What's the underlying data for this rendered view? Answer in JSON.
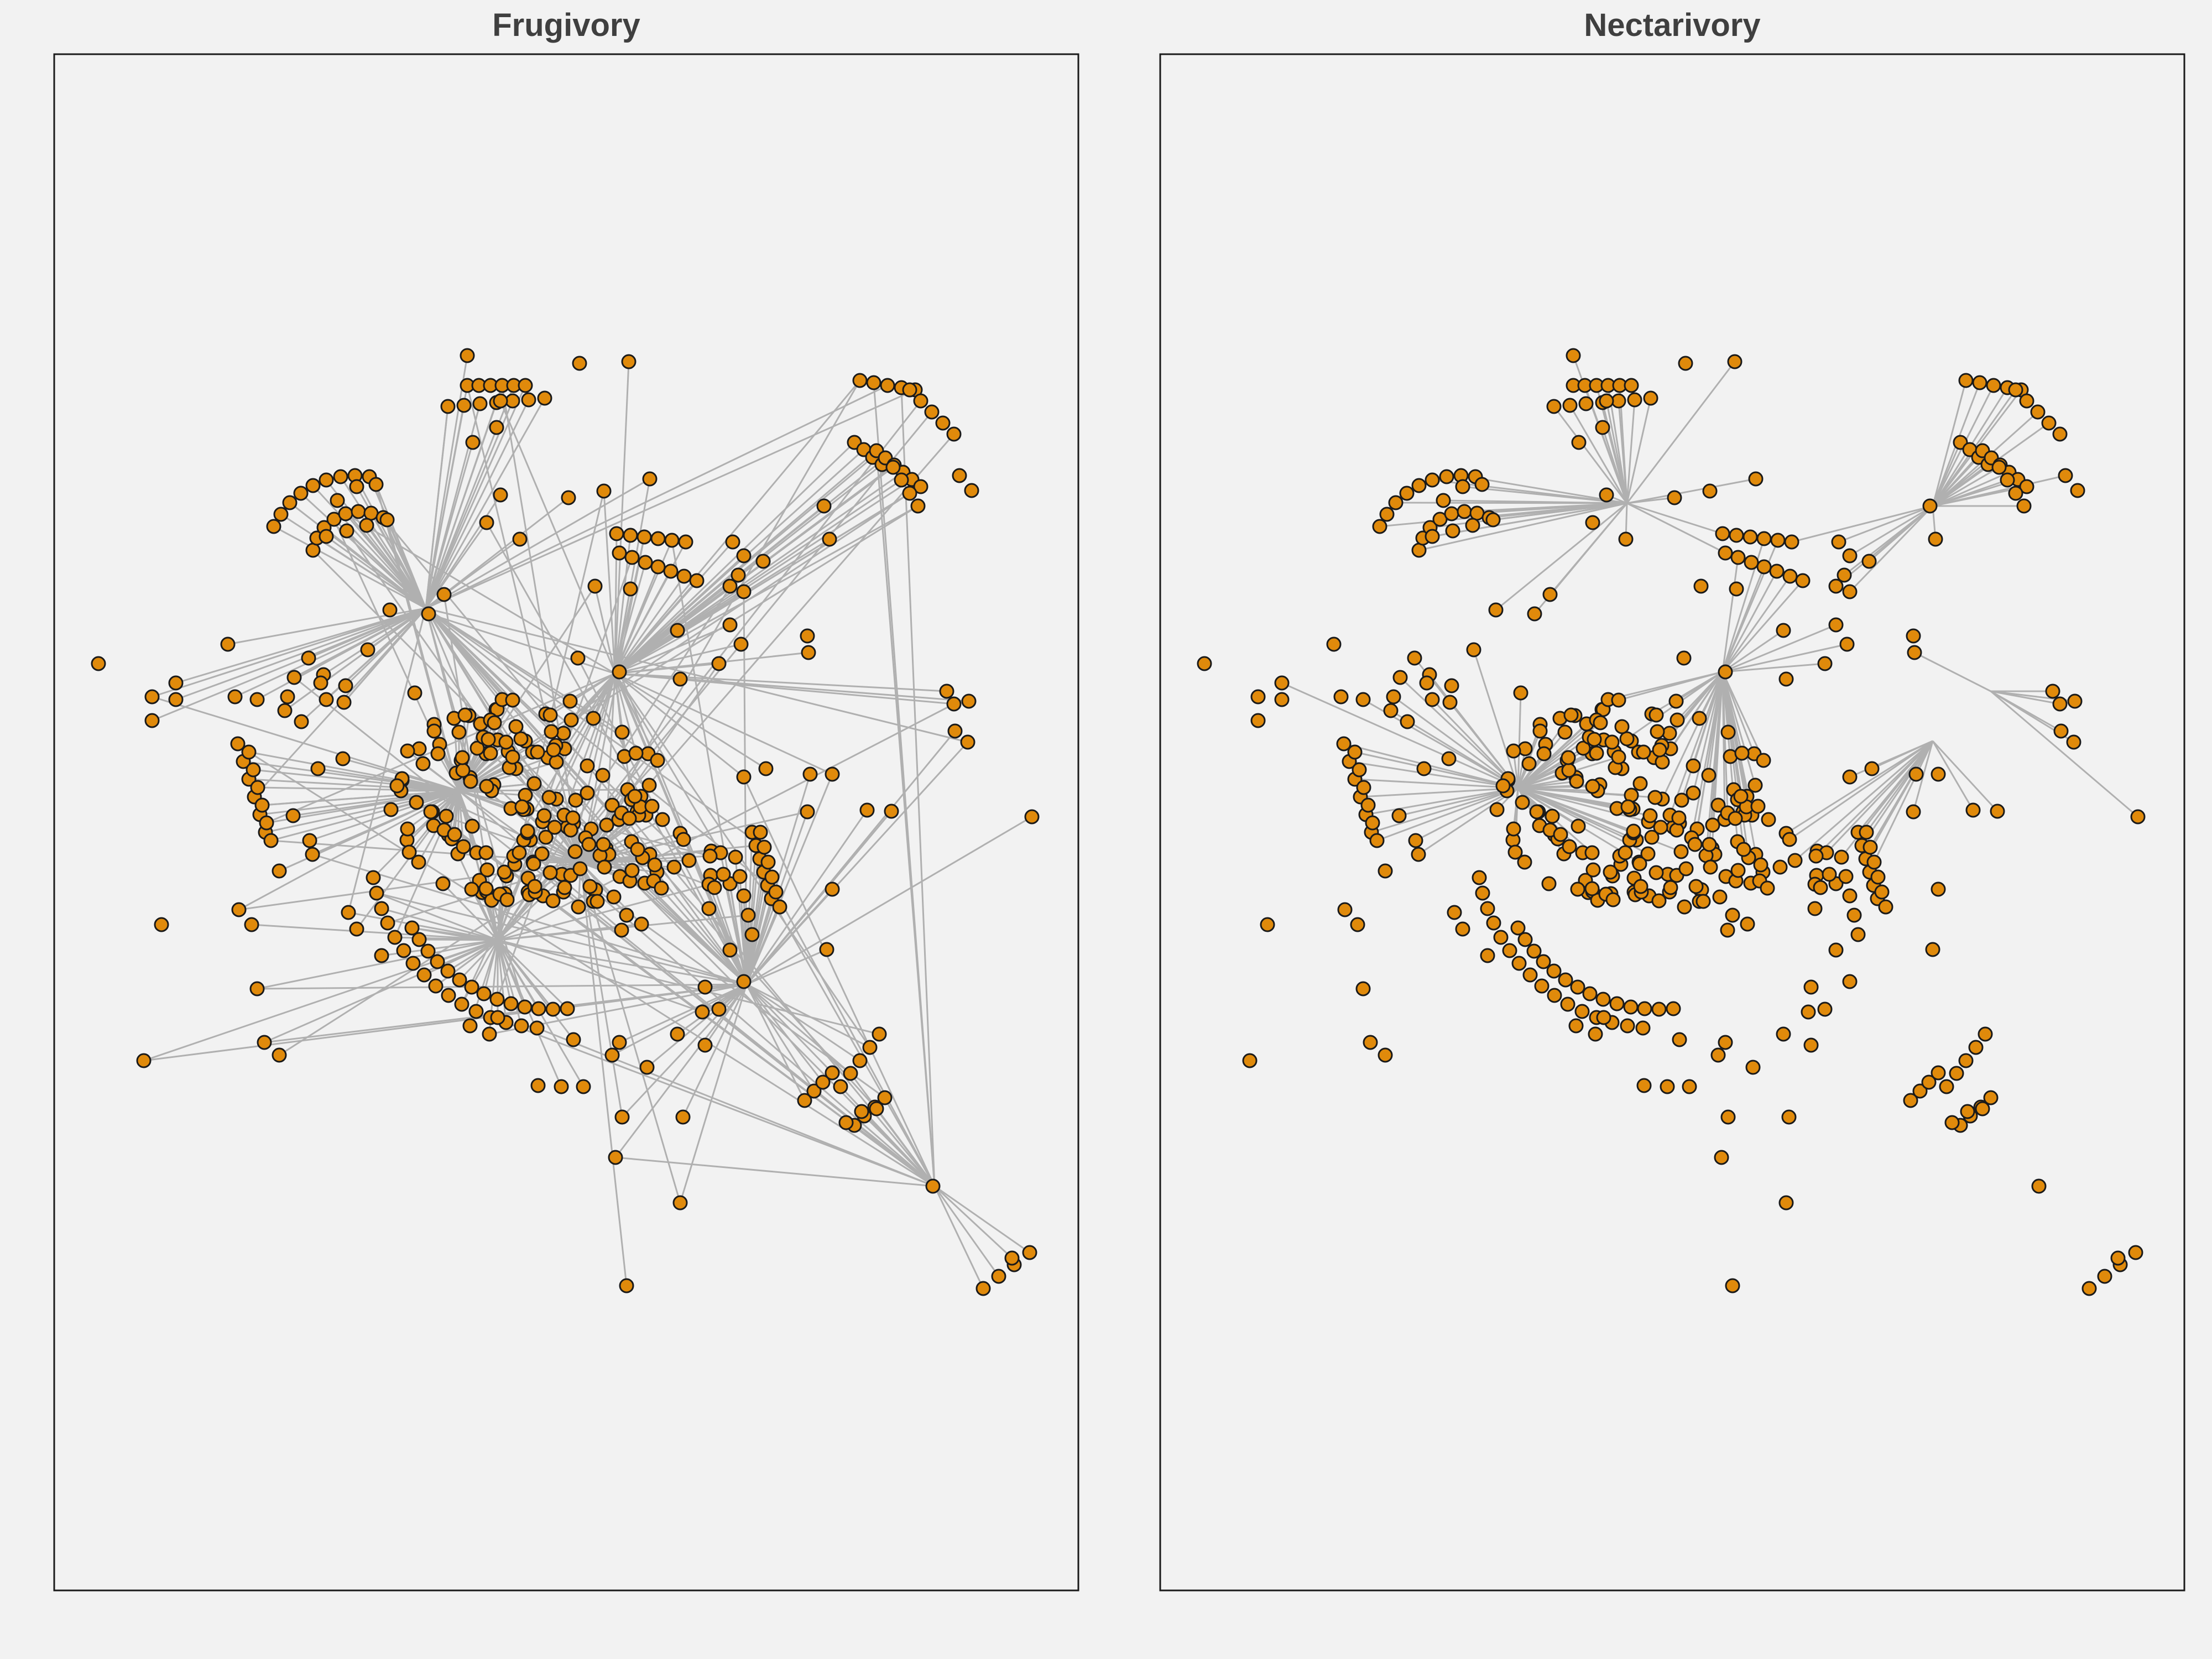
{
  "panels": [
    {
      "title": "Frugivory"
    },
    {
      "title": "Nectarivory"
    }
  ],
  "colors": {
    "background": "#f2f2f2",
    "node_fill": "#e08a0b",
    "node_stroke": "#1a1a1a",
    "edge": "#b0b0b0",
    "frame": "#1a1a1a",
    "title": "#3f3f3f"
  }
}
